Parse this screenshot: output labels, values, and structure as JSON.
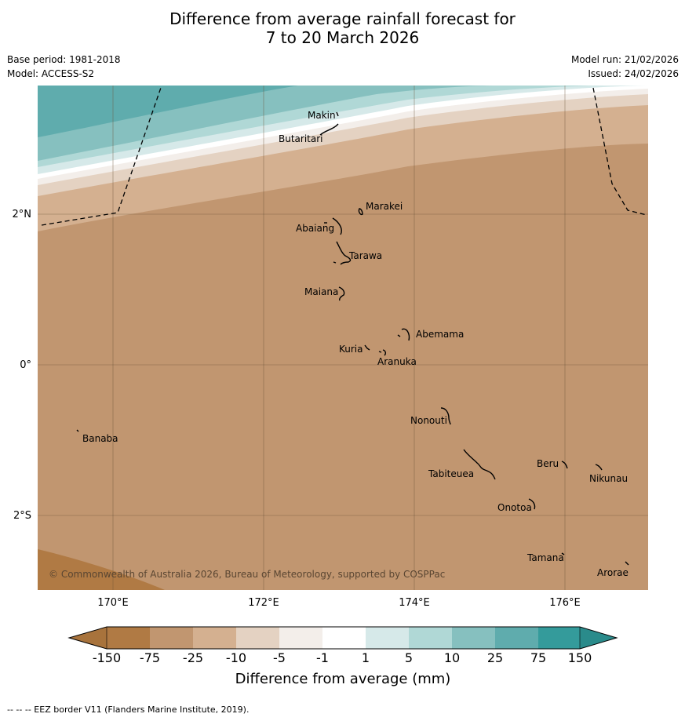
{
  "title": {
    "line1": "Difference from average rainfall forecast for",
    "line2": "7 to 20 March 2026"
  },
  "meta": {
    "base_period": "Base period: 1981-2018",
    "model": "Model: ACCESS-S2",
    "model_run": "Model run: 21/02/2026",
    "issued": "Issued: 24/02/2026"
  },
  "map": {
    "lon_range": [
      169,
      177.1
    ],
    "lat_range": [
      -3.0,
      3.7
    ],
    "lon_ticks": [
      {
        "value": 170,
        "label": "170°E"
      },
      {
        "value": 172,
        "label": "172°E"
      },
      {
        "value": 174,
        "label": "174°E"
      },
      {
        "value": 176,
        "label": "176°E"
      }
    ],
    "lat_ticks": [
      {
        "value": 2,
        "label": "2°N"
      },
      {
        "value": 0,
        "label": "0°"
      },
      {
        "value": -2,
        "label": "2°S"
      }
    ],
    "copyright": "© Commonwealth of Australia 2026, Bureau of Meteorology, supported by COSPPac",
    "islands": [
      {
        "name": "Makin",
        "lon": 173.0,
        "lat": 3.35
      },
      {
        "name": "Butaritari",
        "lon": 172.9,
        "lat": 3.07
      },
      {
        "name": "Marakei",
        "lon": 173.3,
        "lat": 2.0
      },
      {
        "name": "Abaiang",
        "lon": 173.0,
        "lat": 1.85
      },
      {
        "name": "Tarawa",
        "lon": 173.1,
        "lat": 1.45
      },
      {
        "name": "Maiana",
        "lon": 173.05,
        "lat": 0.95
      },
      {
        "name": "Abemama",
        "lon": 173.9,
        "lat": 0.4
      },
      {
        "name": "Kuria",
        "lon": 173.4,
        "lat": 0.22
      },
      {
        "name": "Aranuka",
        "lon": 173.6,
        "lat": 0.17
      },
      {
        "name": "Banaba",
        "lon": 169.55,
        "lat": -0.85
      },
      {
        "name": "Nonouti",
        "lon": 174.4,
        "lat": -0.65
      },
      {
        "name": "Tabiteuea",
        "lon": 174.9,
        "lat": -1.35
      },
      {
        "name": "Beru",
        "lon": 176.0,
        "lat": -1.33
      },
      {
        "name": "Nikunau",
        "lon": 176.45,
        "lat": -1.35
      },
      {
        "name": "Onotoa",
        "lon": 175.55,
        "lat": -1.8
      },
      {
        "name": "Tamana",
        "lon": 175.98,
        "lat": -2.5
      },
      {
        "name": "Arorae",
        "lon": 176.82,
        "lat": -2.63
      }
    ]
  },
  "legend": {
    "title": "Difference from average (mm)",
    "ticks": [
      "-150",
      "-75",
      "-25",
      "-10",
      "-5",
      "-1",
      "1",
      "5",
      "10",
      "25",
      "75",
      "150"
    ],
    "colors": {
      "below_150": "#a8733c",
      "m150_m75": "#b07a44",
      "m75_m25": "#c19670",
      "m25_m10": "#d4b090",
      "m10_m5": "#e4d2c2",
      "m5_m1": "#f3eeea",
      "m1_1": "#ffffff",
      "p1_5": "#d6e9e9",
      "p5_10": "#b0d8d6",
      "p10_25": "#86c0bf",
      "p25_75": "#5facad",
      "p75_150": "#349b9b",
      "above_150": "#2a8b8b"
    }
  },
  "footer": {
    "eez_note": "--  --  -- EEZ border V11 (Flanders Marine Institute, 2019)."
  }
}
